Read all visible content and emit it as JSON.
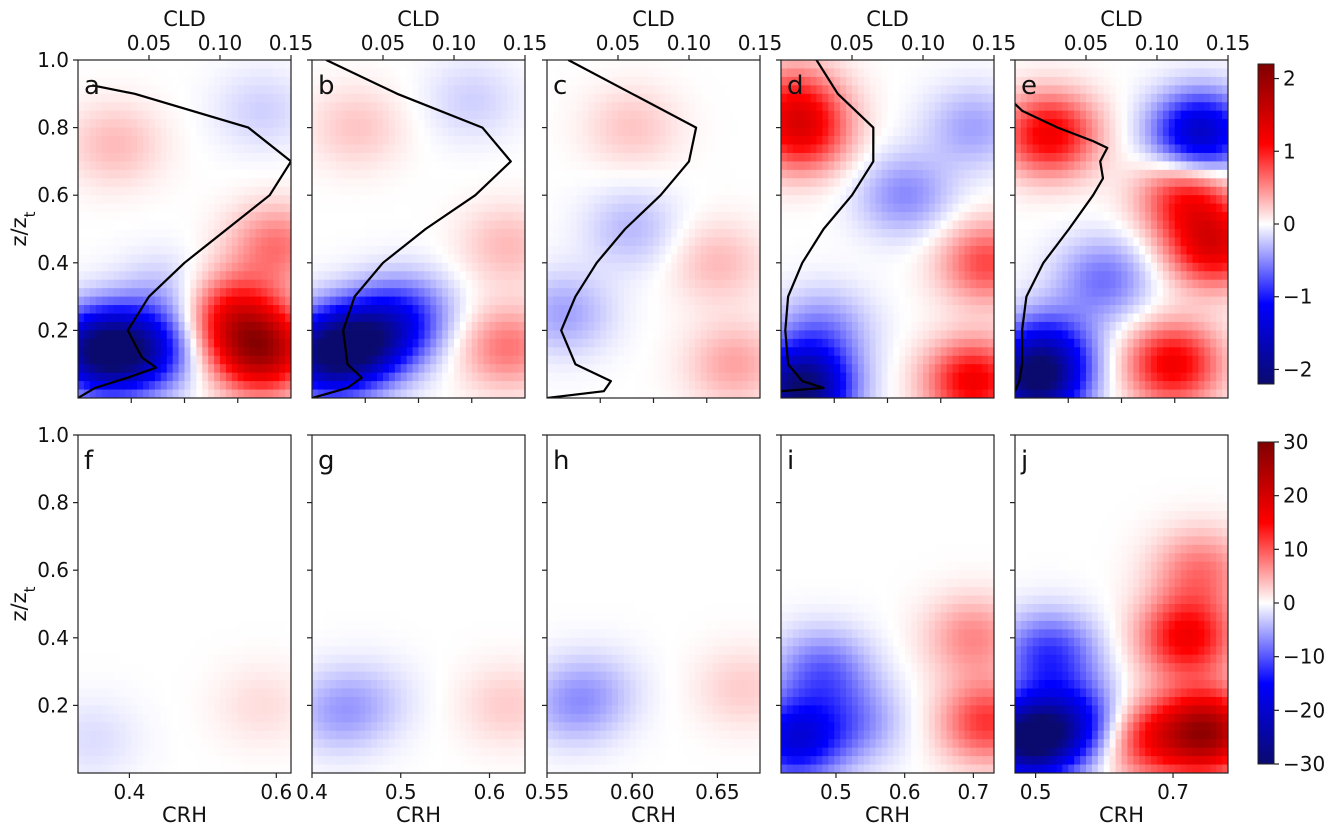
{
  "figure": {
    "y_axis_label": "z/z",
    "y_axis_label_subscript": "t",
    "top_axis_label": "CLD",
    "bottom_axis_label": "CRH",
    "shared_y_ticks": [
      "1.0",
      "0.8",
      "0.6",
      "0.4",
      "0.2"
    ],
    "top_axis_ticks": [
      "0.05",
      "0.10",
      "0.15"
    ],
    "colorbar_top": {
      "range": [
        -2.2,
        2.2
      ],
      "ticks": [
        "2",
        "1",
        "0",
        "−1",
        "−2"
      ]
    },
    "colorbar_bottom": {
      "range": [
        -30,
        30
      ],
      "ticks": [
        "30",
        "20",
        "10",
        "0",
        "−10",
        "−20",
        "−30"
      ]
    },
    "colormap": [
      "#0a0a6e",
      "#0000ff",
      "#ffffff",
      "#ff0000",
      "#800000"
    ]
  },
  "chart_data": [
    {
      "panel": "a",
      "type": "heatmap",
      "xlabel": "",
      "ylabel": "z/z_t",
      "x_range": [
        0.33,
        0.62
      ],
      "ylim": [
        0,
        1
      ],
      "cld_range": [
        0,
        0.15
      ],
      "cld_profile": {
        "z": [
          0.0,
          0.03,
          0.06,
          0.09,
          0.12,
          0.2,
          0.3,
          0.4,
          0.5,
          0.6,
          0.7,
          0.8,
          0.9,
          0.925
        ],
        "cld": [
          0.0,
          0.012,
          0.035,
          0.055,
          0.045,
          0.035,
          0.05,
          0.075,
          0.105,
          0.135,
          0.15,
          0.12,
          0.04,
          0.01
        ]
      },
      "field_blobs": [
        {
          "x": 0.36,
          "z": 0.14,
          "v": -2.0
        },
        {
          "x": 0.42,
          "z": 0.14,
          "v": -1.2
        },
        {
          "x": 0.58,
          "z": 0.14,
          "v": 1.8
        },
        {
          "x": 0.54,
          "z": 0.25,
          "v": 1.0
        },
        {
          "x": 0.6,
          "z": 0.45,
          "v": 0.6
        },
        {
          "x": 0.38,
          "z": 0.75,
          "v": 0.3
        },
        {
          "x": 0.45,
          "z": 0.3,
          "v": -0.3
        },
        {
          "x": 0.58,
          "z": 0.85,
          "v": -0.2
        }
      ]
    },
    {
      "panel": "b",
      "type": "heatmap",
      "xlabel": "",
      "ylabel": "",
      "x_range": [
        0.4,
        0.64
      ],
      "ylim": [
        0,
        1
      ],
      "cld_range": [
        0,
        0.15
      ],
      "cld_profile": {
        "z": [
          0.0,
          0.03,
          0.06,
          0.1,
          0.2,
          0.3,
          0.4,
          0.5,
          0.6,
          0.7,
          0.8,
          0.9,
          1.0
        ],
        "cld": [
          0.0,
          0.025,
          0.035,
          0.025,
          0.022,
          0.03,
          0.05,
          0.08,
          0.115,
          0.14,
          0.12,
          0.06,
          0.01
        ]
      },
      "field_blobs": [
        {
          "x": 0.42,
          "z": 0.13,
          "v": -2.0
        },
        {
          "x": 0.47,
          "z": 0.18,
          "v": -1.4
        },
        {
          "x": 0.51,
          "z": 0.25,
          "v": -0.6
        },
        {
          "x": 0.62,
          "z": 0.15,
          "v": 0.6
        },
        {
          "x": 0.62,
          "z": 0.45,
          "v": 0.3
        },
        {
          "x": 0.45,
          "z": 0.8,
          "v": 0.25
        },
        {
          "x": 0.58,
          "z": 0.88,
          "v": -0.2
        }
      ]
    },
    {
      "panel": "c",
      "type": "heatmap",
      "xlabel": "",
      "ylabel": "",
      "x_range": [
        0.55,
        0.675
      ],
      "ylim": [
        0,
        1
      ],
      "cld_range": [
        0,
        0.15
      ],
      "cld_profile": {
        "z": [
          0.0,
          0.02,
          0.05,
          0.1,
          0.2,
          0.3,
          0.4,
          0.5,
          0.6,
          0.7,
          0.8,
          0.9,
          1.0
        ],
        "cld": [
          0.0,
          0.04,
          0.045,
          0.02,
          0.01,
          0.02,
          0.035,
          0.055,
          0.08,
          0.1,
          0.105,
          0.06,
          0.015
        ]
      },
      "field_blobs": [
        {
          "x": 0.56,
          "z": 0.25,
          "v": -0.4
        },
        {
          "x": 0.6,
          "z": 0.5,
          "v": -0.3
        },
        {
          "x": 0.66,
          "z": 0.1,
          "v": 0.4
        },
        {
          "x": 0.65,
          "z": 0.4,
          "v": 0.3
        },
        {
          "x": 0.6,
          "z": 0.8,
          "v": 0.25
        }
      ]
    },
    {
      "panel": "d",
      "type": "heatmap",
      "xlabel": "",
      "ylabel": "",
      "x_range": [
        0.42,
        0.73
      ],
      "ylim": [
        0,
        1
      ],
      "cld_range": [
        0,
        0.15
      ],
      "cld_profile": {
        "z": [
          0.02,
          0.03,
          0.05,
          0.1,
          0.2,
          0.3,
          0.4,
          0.5,
          0.6,
          0.7,
          0.8,
          0.9,
          1.0
        ],
        "cld": [
          0.0,
          0.03,
          0.015,
          0.005,
          0.003,
          0.005,
          0.015,
          0.03,
          0.05,
          0.065,
          0.065,
          0.04,
          0.025
        ]
      },
      "field_blobs": [
        {
          "x": 0.45,
          "z": 0.03,
          "v": -2.2
        },
        {
          "x": 0.48,
          "z": 0.2,
          "v": -0.5
        },
        {
          "x": 0.45,
          "z": 0.78,
          "v": 1.0
        },
        {
          "x": 0.44,
          "z": 0.88,
          "v": 0.7
        },
        {
          "x": 0.7,
          "z": 0.05,
          "v": 1.2
        },
        {
          "x": 0.72,
          "z": 0.4,
          "v": 0.8
        },
        {
          "x": 0.6,
          "z": 0.6,
          "v": -0.5
        },
        {
          "x": 0.7,
          "z": 0.8,
          "v": -0.4
        }
      ]
    },
    {
      "panel": "e",
      "type": "heatmap",
      "xlabel": "",
      "ylabel": "",
      "x_range": [
        0.47,
        0.78
      ],
      "ylim": [
        0,
        1
      ],
      "cld_range": [
        0,
        0.15
      ],
      "cld_profile": {
        "z": [
          0.02,
          0.05,
          0.1,
          0.2,
          0.3,
          0.4,
          0.5,
          0.6,
          0.65,
          0.7,
          0.74,
          0.76,
          0.8,
          0.85,
          0.87
        ],
        "cld": [
          0.0,
          0.003,
          0.005,
          0.005,
          0.008,
          0.02,
          0.038,
          0.055,
          0.062,
          0.06,
          0.065,
          0.055,
          0.03,
          0.005,
          0.0
        ]
      },
      "field_blobs": [
        {
          "x": 0.5,
          "z": 0.05,
          "v": -2.0
        },
        {
          "x": 0.52,
          "z": 0.15,
          "v": -0.8
        },
        {
          "x": 0.52,
          "z": 0.78,
          "v": 1.2
        },
        {
          "x": 0.72,
          "z": 0.6,
          "v": 1.0
        },
        {
          "x": 0.76,
          "z": 0.45,
          "v": 1.3
        },
        {
          "x": 0.74,
          "z": 0.78,
          "v": -1.6
        },
        {
          "x": 0.7,
          "z": 0.1,
          "v": 1.2
        },
        {
          "x": 0.6,
          "z": 0.35,
          "v": -0.6
        }
      ]
    },
    {
      "panel": "f",
      "type": "heatmap",
      "xlabel": "CRH",
      "ylabel": "z/z_t",
      "x_range": [
        0.33,
        0.62
      ],
      "ylim": [
        0,
        1
      ],
      "x_ticks": [
        "0.4",
        "0.6"
      ],
      "field_blobs": [
        {
          "x": 0.35,
          "z": 0.1,
          "v": -2.0
        },
        {
          "x": 0.58,
          "z": 0.2,
          "v": 2.0
        }
      ]
    },
    {
      "panel": "g",
      "type": "heatmap",
      "xlabel": "CRH",
      "ylabel": "",
      "x_range": [
        0.4,
        0.64
      ],
      "ylim": [
        0,
        1
      ],
      "x_ticks": [
        "0.4",
        "0.5",
        "0.6"
      ],
      "field_blobs": [
        {
          "x": 0.43,
          "z": 0.18,
          "v": -5.0
        },
        {
          "x": 0.47,
          "z": 0.22,
          "v": -2.0
        },
        {
          "x": 0.62,
          "z": 0.2,
          "v": 3.0
        }
      ]
    },
    {
      "panel": "h",
      "type": "heatmap",
      "xlabel": "CRH",
      "ylabel": "",
      "x_range": [
        0.55,
        0.675
      ],
      "ylim": [
        0,
        1
      ],
      "x_ticks": [
        "0.55",
        "0.60",
        "0.65"
      ],
      "field_blobs": [
        {
          "x": 0.565,
          "z": 0.2,
          "v": -5.0
        },
        {
          "x": 0.58,
          "z": 0.25,
          "v": -2.5
        },
        {
          "x": 0.665,
          "z": 0.25,
          "v": 3.0
        }
      ]
    },
    {
      "panel": "i",
      "type": "heatmap",
      "xlabel": "CRH",
      "ylabel": "",
      "x_range": [
        0.42,
        0.73
      ],
      "ylim": [
        0,
        1
      ],
      "x_ticks": [
        "0.5",
        "0.6",
        "0.7"
      ],
      "field_blobs": [
        {
          "x": 0.44,
          "z": 0.1,
          "v": -18.0
        },
        {
          "x": 0.48,
          "z": 0.3,
          "v": -9.0
        },
        {
          "x": 0.53,
          "z": 0.15,
          "v": -6.0
        },
        {
          "x": 0.72,
          "z": 0.15,
          "v": 12.0
        },
        {
          "x": 0.7,
          "z": 0.4,
          "v": 7.0
        }
      ]
    },
    {
      "panel": "j",
      "type": "heatmap",
      "xlabel": "CRH",
      "ylabel": "",
      "x_range": [
        0.47,
        0.78
      ],
      "ylim": [
        0,
        1
      ],
      "x_ticks": [
        "0.5",
        "0.7"
      ],
      "field_blobs": [
        {
          "x": 0.49,
          "z": 0.1,
          "v": -30.0
        },
        {
          "x": 0.52,
          "z": 0.35,
          "v": -12.0
        },
        {
          "x": 0.56,
          "z": 0.15,
          "v": -14.0
        },
        {
          "x": 0.75,
          "z": 0.12,
          "v": 26.0
        },
        {
          "x": 0.72,
          "z": 0.4,
          "v": 16.0
        },
        {
          "x": 0.74,
          "z": 0.6,
          "v": 8.0
        },
        {
          "x": 0.66,
          "z": 0.1,
          "v": 12.0
        }
      ]
    }
  ]
}
